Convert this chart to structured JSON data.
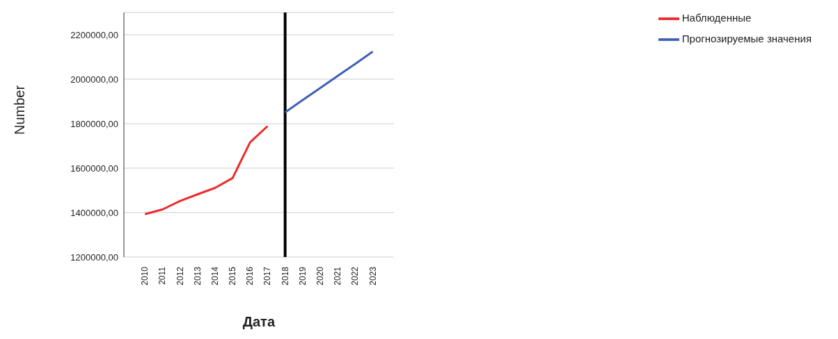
{
  "chart_data": {
    "type": "line",
    "xlabel": "Дата",
    "ylabel": "Number",
    "categories": [
      "2010",
      "2011",
      "2012",
      "2013",
      "2014",
      "2015",
      "2016",
      "2017",
      "2018",
      "2019",
      "2020",
      "2021",
      "2022",
      "2023"
    ],
    "series": [
      {
        "name": "Наблюденные",
        "color": "#ee2a2a",
        "values": [
          1393000,
          1414000,
          1452000,
          1482000,
          1511000,
          1555000,
          1716000,
          1789000,
          null,
          null,
          null,
          null,
          null,
          null
        ]
      },
      {
        "name": "Прогнозируемые значения",
        "color": "#3f5fb5",
        "values": [
          null,
          null,
          null,
          null,
          null,
          null,
          null,
          null,
          1851000,
          1906000,
          1960000,
          2015000,
          2069000,
          2124000
        ]
      }
    ],
    "ylim": [
      1200000,
      2300000
    ],
    "yticks": [
      {
        "value": 1200000,
        "label": "1200000,00"
      },
      {
        "value": 1400000,
        "label": "1400000,00"
      },
      {
        "value": 1600000,
        "label": "1600000,00"
      },
      {
        "value": 1800000,
        "label": "1800000,00"
      },
      {
        "value": 2000000,
        "label": "2000000,00"
      },
      {
        "value": 2200000,
        "label": "2200000,00"
      }
    ],
    "ref_lines": [
      {
        "axis": "x",
        "value": "2018",
        "color": "#000000"
      }
    ],
    "grid": "y",
    "legend": "top right",
    "marker": "none",
    "line_style": "solid"
  }
}
